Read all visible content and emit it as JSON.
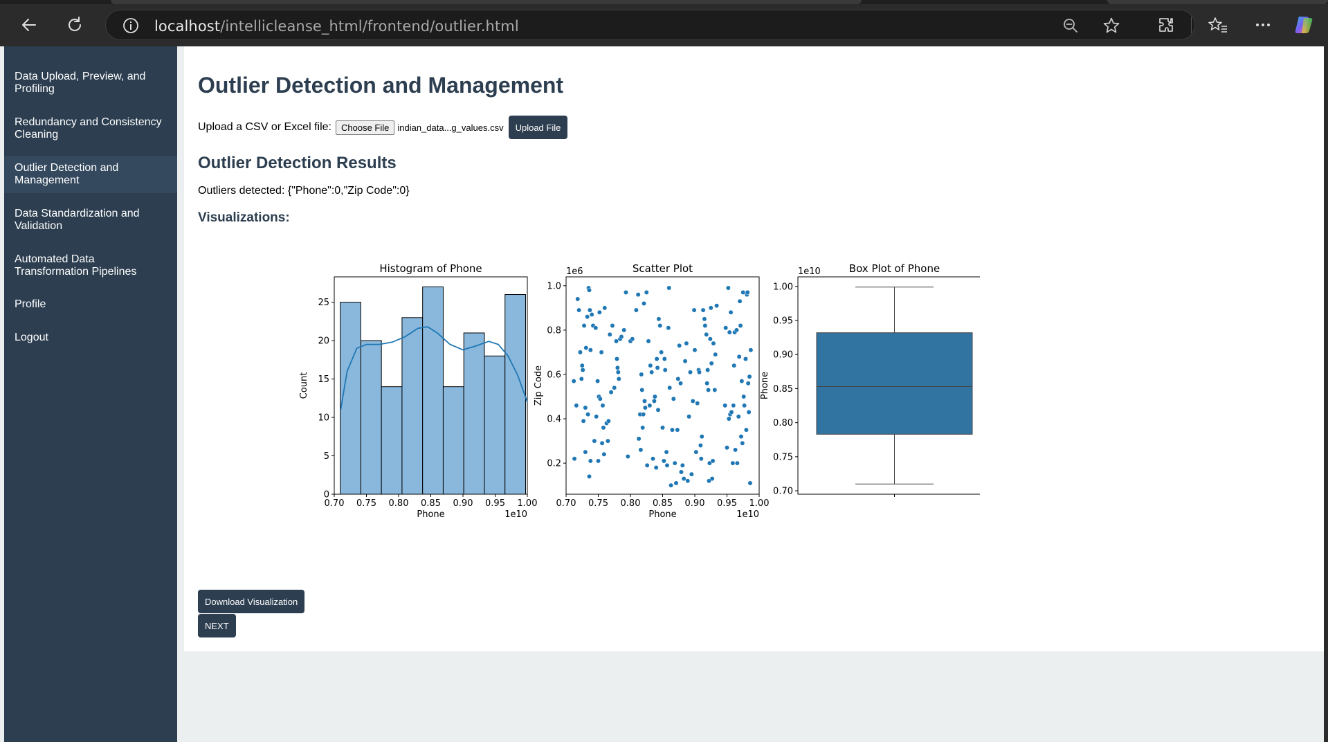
{
  "browser": {
    "url_host": "localhost",
    "url_path": "/intellicleanse_html/frontend/outlier.html"
  },
  "sidebar": {
    "items": [
      {
        "label": "Data Upload, Preview, and Profiling"
      },
      {
        "label": "Redundancy and Consistency Cleaning"
      },
      {
        "label": "Outlier Detection and Management"
      },
      {
        "label": "Data Standardization and Validation"
      },
      {
        "label": "Automated Data Transformation Pipelines"
      },
      {
        "label": "Profile"
      },
      {
        "label": "Logout"
      }
    ],
    "active_index": 2
  },
  "main": {
    "title": "Outlier Detection and Management",
    "upload_label": "Upload a CSV or Excel file:",
    "choose_file_label": "Choose File",
    "file_name": "indian_data...g_values.csv",
    "upload_button": "Upload File",
    "results_heading": "Outlier Detection Results",
    "outliers_text": "Outliers detected: {\"Phone\":0,\"Zip Code\":0}",
    "viz_heading": "Visualizations:",
    "download_button": "Download Visualization",
    "next_button": "NEXT"
  },
  "colors": {
    "sidebar_bg": "#2c3e50",
    "sidebar_active": "#34495e",
    "hist_fill": "#8ab8dc",
    "series_blue": "#1f77b4",
    "box_fill": "#3274a1"
  },
  "chart_data": [
    {
      "type": "bar",
      "title": "Histogram of Phone",
      "xlabel": "Phone",
      "ylabel": "Count",
      "x_offset_label": "1e10",
      "bin_edges": [
        0.7093,
        0.7413,
        0.7733,
        0.8053,
        0.8373,
        0.8693,
        0.9013,
        0.9333,
        0.9653,
        0.9973
      ],
      "values": [
        25,
        20,
        14,
        23,
        27,
        14,
        21,
        18,
        26
      ],
      "kde": [
        [
          0.71,
          11
        ],
        [
          0.72,
          16
        ],
        [
          0.735,
          19
        ],
        [
          0.75,
          19.5
        ],
        [
          0.77,
          19.5
        ],
        [
          0.79,
          19.8
        ],
        [
          0.81,
          20.5
        ],
        [
          0.83,
          21.6
        ],
        [
          0.845,
          21.8
        ],
        [
          0.86,
          21
        ],
        [
          0.88,
          19.5
        ],
        [
          0.9,
          18.8
        ],
        [
          0.92,
          19.3
        ],
        [
          0.94,
          19.9
        ],
        [
          0.955,
          19.5
        ],
        [
          0.97,
          18
        ],
        [
          0.985,
          15.5
        ],
        [
          1.0,
          12
        ]
      ],
      "xlim": [
        0.7,
        1.0
      ],
      "ylim": [
        0,
        28.3
      ],
      "xticks": [
        "0.70",
        "0.75",
        "0.80",
        "0.85",
        "0.90",
        "0.95",
        "1.00"
      ],
      "yticks": [
        "0",
        "5",
        "10",
        "15",
        "20",
        "25"
      ]
    },
    {
      "type": "scatter",
      "title": "Scatter Plot",
      "xlabel": "Phone",
      "ylabel": "Zip Code",
      "x_offset_label": "1e10",
      "y_offset_label": "1e6",
      "xlim": [
        0.7,
        1.0
      ],
      "ylim": [
        0.06,
        1.04
      ],
      "xticks": [
        "0.70",
        "0.75",
        "0.80",
        "0.85",
        "0.90",
        "0.95",
        "1.00"
      ],
      "yticks": [
        "0.2",
        "0.4",
        "0.6",
        "0.8",
        "1.0"
      ],
      "points": [
        [
          0.712,
          0.57
        ],
        [
          0.713,
          0.22
        ],
        [
          0.716,
          0.46
        ],
        [
          0.718,
          0.94
        ],
        [
          0.72,
          0.89
        ],
        [
          0.722,
          0.7
        ],
        [
          0.724,
          0.58
        ],
        [
          0.725,
          0.64
        ],
        [
          0.726,
          0.62
        ],
        [
          0.727,
          0.39
        ],
        [
          0.728,
          0.82
        ],
        [
          0.73,
          0.25
        ],
        [
          0.73,
          0.45
        ],
        [
          0.731,
          0.72
        ],
        [
          0.733,
          0.86
        ],
        [
          0.734,
          0.42
        ],
        [
          0.735,
          0.99
        ],
        [
          0.736,
          0.98
        ],
        [
          0.736,
          0.14
        ],
        [
          0.737,
          0.89
        ],
        [
          0.738,
          0.71
        ],
        [
          0.738,
          0.21
        ],
        [
          0.74,
          0.87
        ],
        [
          0.742,
          0.82
        ],
        [
          0.744,
          0.3
        ],
        [
          0.746,
          0.81
        ],
        [
          0.747,
          0.41
        ],
        [
          0.749,
          0.57
        ],
        [
          0.75,
          0.21
        ],
        [
          0.751,
          0.5
        ],
        [
          0.752,
          0.88
        ],
        [
          0.753,
          0.49
        ],
        [
          0.755,
          0.7
        ],
        [
          0.756,
          0.29
        ],
        [
          0.757,
          0.46
        ],
        [
          0.758,
          0.36
        ],
        [
          0.759,
          0.24
        ],
        [
          0.76,
          0.9
        ],
        [
          0.763,
          0.38
        ],
        [
          0.765,
          0.3
        ],
        [
          0.766,
          0.39
        ],
        [
          0.768,
          0.78
        ],
        [
          0.77,
          0.52
        ],
        [
          0.772,
          0.82
        ],
        [
          0.775,
          0.54
        ],
        [
          0.778,
          0.75
        ],
        [
          0.779,
          0.67
        ],
        [
          0.78,
          0.63
        ],
        [
          0.781,
          0.61
        ],
        [
          0.782,
          0.58
        ],
        [
          0.784,
          0.76
        ],
        [
          0.786,
          0.77
        ],
        [
          0.79,
          0.8
        ],
        [
          0.793,
          0.97
        ],
        [
          0.796,
          0.23
        ],
        [
          0.8,
          0.75
        ],
        [
          0.803,
          0.76
        ],
        [
          0.809,
          0.89
        ],
        [
          0.812,
          0.96
        ],
        [
          0.813,
          0.31
        ],
        [
          0.815,
          0.42
        ],
        [
          0.816,
          0.26
        ],
        [
          0.817,
          0.6
        ],
        [
          0.818,
          0.53
        ],
        [
          0.819,
          0.36
        ],
        [
          0.82,
          0.42
        ],
        [
          0.821,
          0.92
        ],
        [
          0.822,
          0.48
        ],
        [
          0.823,
          0.45
        ],
        [
          0.825,
          0.97
        ],
        [
          0.826,
          0.19
        ],
        [
          0.828,
          0.75
        ],
        [
          0.83,
          0.46
        ],
        [
          0.831,
          0.64
        ],
        [
          0.833,
          0.61
        ],
        [
          0.835,
          0.22
        ],
        [
          0.837,
          0.48
        ],
        [
          0.838,
          0.5
        ],
        [
          0.84,
          0.18
        ],
        [
          0.841,
          0.67
        ],
        [
          0.842,
          0.63
        ],
        [
          0.843,
          0.44
        ],
        [
          0.844,
          0.85
        ],
        [
          0.846,
          0.82
        ],
        [
          0.848,
          0.7
        ],
        [
          0.85,
          0.36
        ],
        [
          0.852,
          0.21
        ],
        [
          0.853,
          0.67
        ],
        [
          0.854,
          0.62
        ],
        [
          0.856,
          0.25
        ],
        [
          0.857,
          0.19
        ],
        [
          0.859,
          0.81
        ],
        [
          0.86,
          0.99
        ],
        [
          0.861,
          0.54
        ],
        [
          0.863,
          0.1
        ],
        [
          0.865,
          0.35
        ],
        [
          0.867,
          0.49
        ],
        [
          0.869,
          0.2
        ],
        [
          0.871,
          0.11
        ],
        [
          0.873,
          0.35
        ],
        [
          0.874,
          0.58
        ],
        [
          0.876,
          0.73
        ],
        [
          0.878,
          0.56
        ],
        [
          0.879,
          0.16
        ],
        [
          0.881,
          0.19
        ],
        [
          0.883,
          0.13
        ],
        [
          0.885,
          0.66
        ],
        [
          0.887,
          0.74
        ],
        [
          0.889,
          0.12
        ],
        [
          0.891,
          0.41
        ],
        [
          0.893,
          0.61
        ],
        [
          0.895,
          0.15
        ],
        [
          0.897,
          0.48
        ],
        [
          0.899,
          0.89
        ],
        [
          0.9,
          0.71
        ],
        [
          0.902,
          0.25
        ],
        [
          0.904,
          0.47
        ],
        [
          0.906,
          0.62
        ],
        [
          0.907,
          0.61
        ],
        [
          0.909,
          0.28
        ],
        [
          0.91,
          0.22
        ],
        [
          0.911,
          0.32
        ],
        [
          0.913,
          0.89
        ],
        [
          0.915,
          0.85
        ],
        [
          0.916,
          0.82
        ],
        [
          0.918,
          0.78
        ],
        [
          0.919,
          0.56
        ],
        [
          0.92,
          0.62
        ],
        [
          0.921,
          0.53
        ],
        [
          0.922,
          0.12
        ],
        [
          0.923,
          0.2
        ],
        [
          0.924,
          0.76
        ],
        [
          0.925,
          0.9
        ],
        [
          0.926,
          0.65
        ],
        [
          0.927,
          0.13
        ],
        [
          0.928,
          0.21
        ],
        [
          0.929,
          0.74
        ],
        [
          0.931,
          0.53
        ],
        [
          0.932,
          0.69
        ],
        [
          0.934,
          0.91
        ],
        [
          0.947,
          0.46
        ],
        [
          0.948,
          0.81
        ],
        [
          0.95,
          0.27
        ],
        [
          0.952,
          0.99
        ],
        [
          0.953,
          0.4
        ],
        [
          0.954,
          0.79
        ],
        [
          0.955,
          0.42
        ],
        [
          0.956,
          0.88
        ],
        [
          0.957,
          0.43
        ],
        [
          0.959,
          0.2
        ],
        [
          0.96,
          0.46
        ],
        [
          0.961,
          0.64
        ],
        [
          0.962,
          0.79
        ],
        [
          0.963,
          0.26
        ],
        [
          0.965,
          0.8
        ],
        [
          0.966,
          0.2
        ],
        [
          0.968,
          0.41
        ],
        [
          0.969,
          0.68
        ],
        [
          0.97,
          0.93
        ],
        [
          0.971,
          0.82
        ],
        [
          0.972,
          0.32
        ],
        [
          0.973,
          0.57
        ],
        [
          0.974,
          0.29
        ],
        [
          0.975,
          0.97
        ],
        [
          0.976,
          0.5
        ],
        [
          0.977,
          0.46
        ],
        [
          0.979,
          0.67
        ],
        [
          0.98,
          0.35
        ],
        [
          0.981,
          0.96
        ],
        [
          0.982,
          0.97
        ],
        [
          0.983,
          0.56
        ],
        [
          0.984,
          0.43
        ],
        [
          0.985,
          0.59
        ],
        [
          0.986,
          0.11
        ],
        [
          0.987,
          0.71
        ]
      ]
    },
    {
      "type": "box",
      "title": "Box Plot of Phone",
      "ylabel": "Phone",
      "y_offset_label": "1e10",
      "ylim": [
        0.695,
        1.014
      ],
      "yticks": [
        "0.70",
        "0.75",
        "0.80",
        "0.85",
        "0.90",
        "0.95",
        "1.00"
      ],
      "whisker_low": 0.71,
      "q1": 0.783,
      "median": 0.853,
      "q3": 0.932,
      "whisker_high": 0.999
    }
  ]
}
